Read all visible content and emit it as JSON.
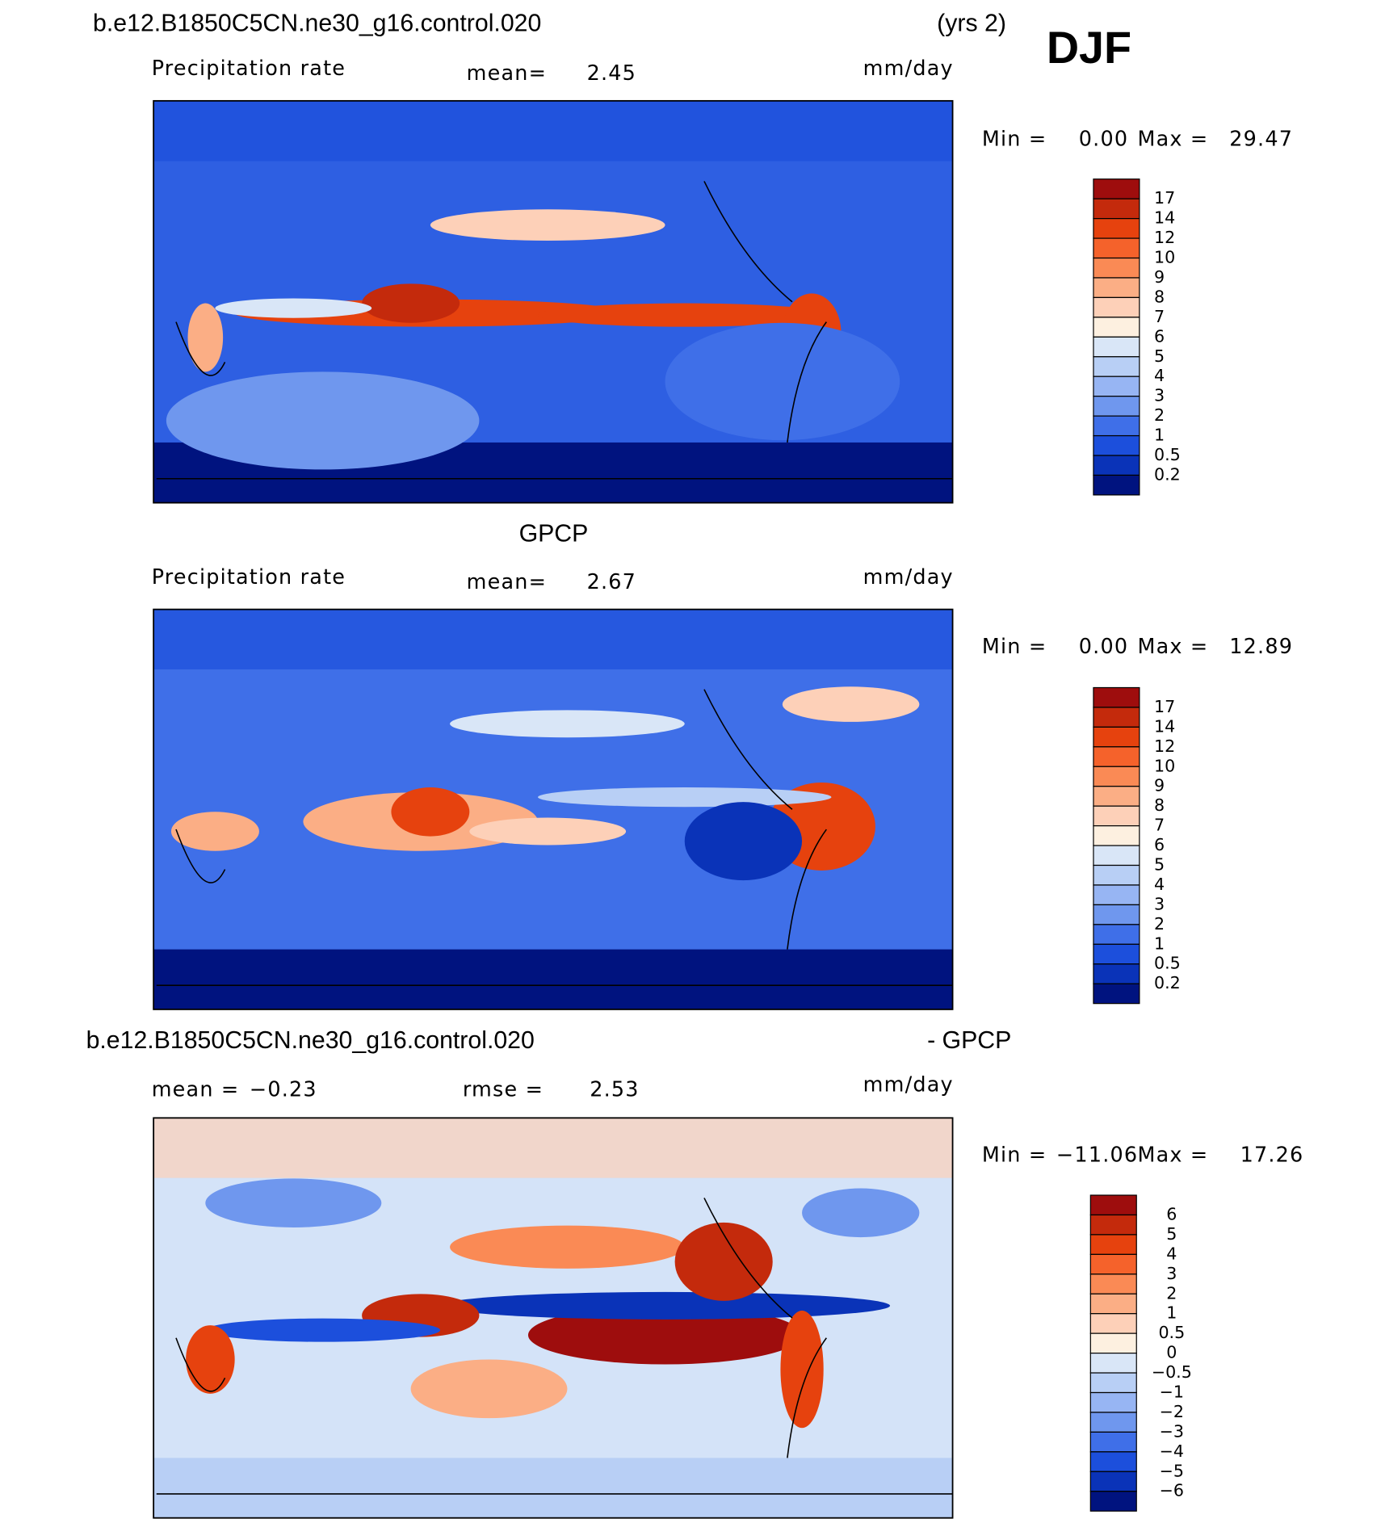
{
  "header": {
    "title": "b.e12.B1850C5CN.ne30_g16.control.020",
    "years": "(yrs 2)",
    "season": "DJF"
  },
  "panels": [
    {
      "variable": "Precipitation rate",
      "mean_label": "mean=",
      "mean": "2.45",
      "units": "mm/day",
      "min_label": "Min =",
      "min": "0.00",
      "max_label": "Max =",
      "max": "29.47",
      "colorbar": [
        "17",
        "14",
        "12",
        "10",
        "9",
        "8",
        "7",
        "6",
        "5",
        "4",
        "3",
        "2",
        "1",
        "0.5",
        "0.2"
      ]
    },
    {
      "title": "GPCP",
      "variable": "Precipitation rate",
      "mean_label": "mean=",
      "mean": "2.67",
      "units": "mm/day",
      "min_label": "Min =",
      "min": "0.00",
      "max_label": "Max =",
      "max": "12.89",
      "colorbar": [
        "17",
        "14",
        "12",
        "10",
        "9",
        "8",
        "7",
        "6",
        "5",
        "4",
        "3",
        "2",
        "1",
        "0.5",
        "0.2"
      ]
    },
    {
      "title": "b.e12.B1850C5CN.ne30_g16.control.020",
      "title_suffix": "- GPCP",
      "mean_label": "mean =",
      "mean": "−0.23",
      "rmse_label": "rmse =",
      "rmse": "2.53",
      "units": "mm/day",
      "min_label": "Min =",
      "min": "−11.06",
      "max_label": "Max =",
      "max": "17.26",
      "colorbar": [
        "6",
        "5",
        "4",
        "3",
        "2",
        "1",
        "0.5",
        "0",
        "−0.5",
        "−1",
        "−2",
        "−3",
        "−4",
        "−5",
        "−6"
      ]
    }
  ]
}
